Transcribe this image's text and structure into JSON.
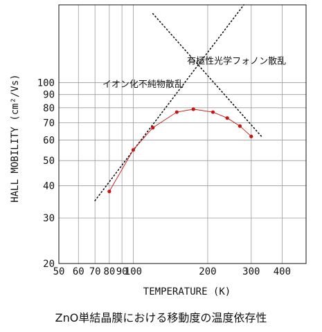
{
  "caption": "ZnO単結晶膜における移動度の温度依存性",
  "chart_data": {
    "type": "scatter",
    "xlabel": "TEMPERATURE (K)",
    "ylabel": "HALL MOBILITY (cm²/Vs)",
    "x_scale": "log",
    "y_scale": "log",
    "xlim": [
      50,
      500
    ],
    "ylim": [
      20,
      200
    ],
    "x_ticks": [
      50,
      60,
      70,
      80,
      90,
      100,
      200,
      300,
      400
    ],
    "x_tick_labels": [
      "50",
      "60",
      "70",
      "80",
      "90",
      "100",
      "200",
      "300",
      "400"
    ],
    "y_ticks": [
      20,
      30,
      40,
      50,
      60,
      70,
      80,
      90,
      100
    ],
    "y_tick_labels": [
      "20",
      "30",
      "40",
      "50",
      "60",
      "70",
      "80",
      "90",
      "100"
    ],
    "grid": true,
    "series": [
      {
        "values_x": [
          80,
          100,
          120,
          150,
          175,
          210,
          240,
          270,
          300
        ],
        "values_y": [
          38,
          55,
          67,
          77,
          79,
          77,
          73,
          68,
          62
        ],
        "color": "#cc1111",
        "style": "line+marker"
      }
    ],
    "reference_lines": [
      {
        "label": "イオン化不純物散乱",
        "x": [
          70,
          280
        ],
        "y": [
          35,
          200
        ],
        "style": "dotted"
      },
      {
        "label": "有極性光学フォノン散乱",
        "x": [
          120,
          330
        ],
        "y": [
          185,
          62
        ],
        "style": "dotted"
      }
    ]
  }
}
